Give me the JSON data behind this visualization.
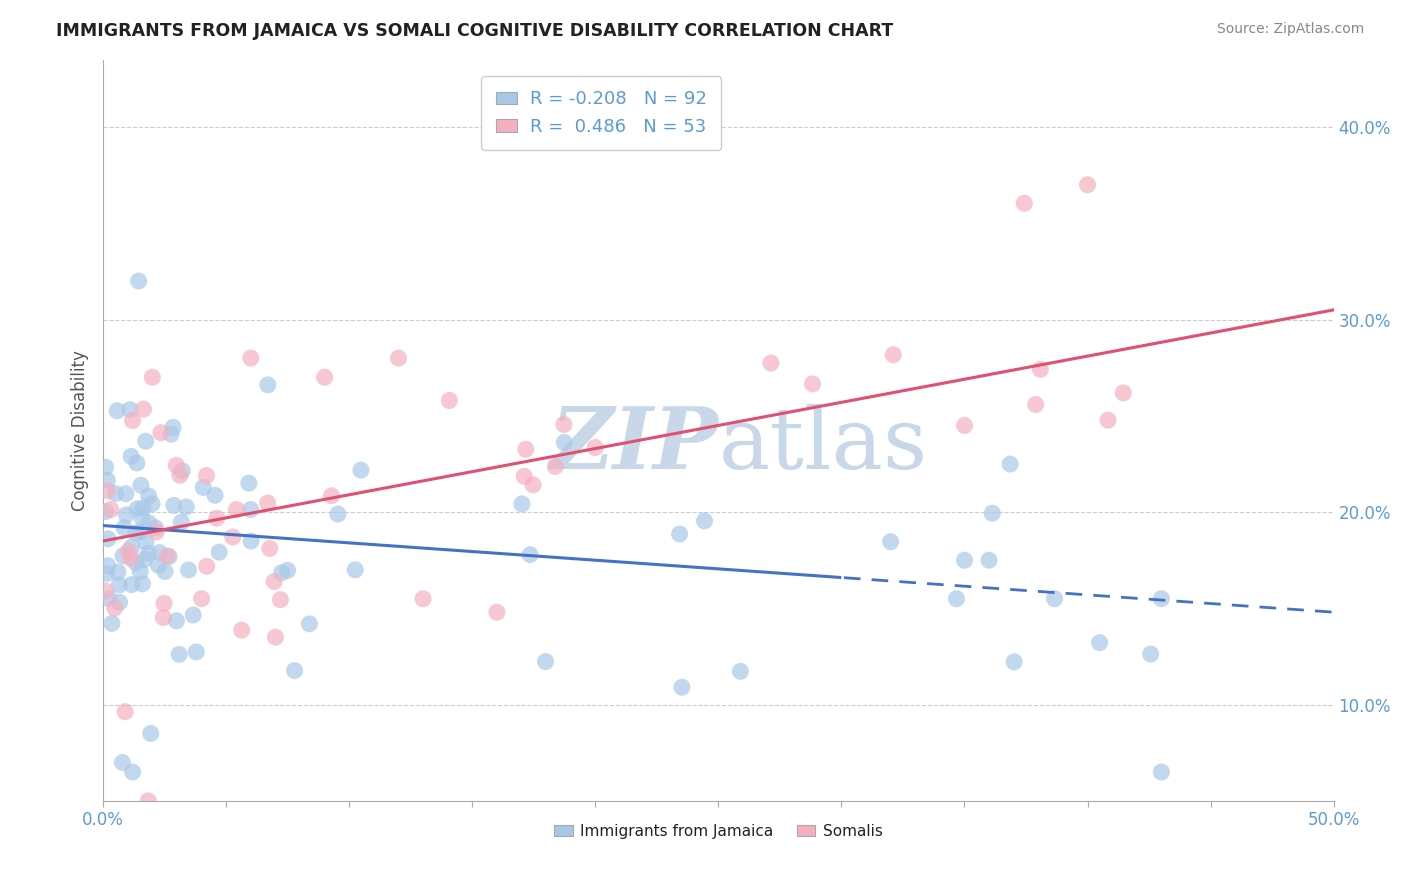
{
  "title": "IMMIGRANTS FROM JAMAICA VS SOMALI COGNITIVE DISABILITY CORRELATION CHART",
  "source": "Source: ZipAtlas.com",
  "ylabel": "Cognitive Disability",
  "xlim": [
    0.0,
    0.5
  ],
  "ylim": [
    0.05,
    0.435
  ],
  "x_ticks_show": [
    0.0,
    0.5
  ],
  "x_tick_labels_show": [
    "0.0%",
    "50.0%"
  ],
  "y_ticks": [
    0.1,
    0.2,
    0.3,
    0.4
  ],
  "y_tick_labels": [
    "10.0%",
    "20.0%",
    "30.0%",
    "40.0%"
  ],
  "legend1_r": "-0.208",
  "legend1_n": "92",
  "legend2_r": "0.486",
  "legend2_n": "53",
  "color_jamaica": "#a8c8e8",
  "color_somali": "#f4b0c0",
  "color_trend_jamaica": "#4472c4",
  "color_trend_somali": "#e05070",
  "watermark_color": "#c8d8e8",
  "trend_j_x0": 0.0,
  "trend_j_y0": 0.193,
  "trend_j_x1": 0.5,
  "trend_j_y1": 0.148,
  "trend_j_solid_end": 0.3,
  "trend_s_x0": 0.0,
  "trend_s_y0": 0.185,
  "trend_s_x1": 0.5,
  "trend_s_y1": 0.305
}
